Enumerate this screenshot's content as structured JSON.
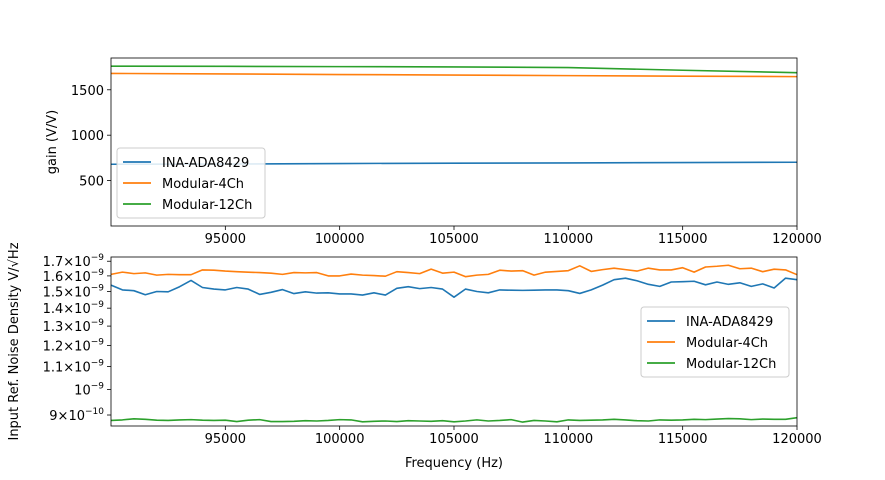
{
  "chart_data": [
    {
      "type": "line",
      "title": "",
      "xlabel": "",
      "ylabel": "gain (V/V)",
      "xlim": [
        90000,
        120000
      ],
      "ylim": [
        0,
        1850
      ],
      "xticks": [
        95000,
        100000,
        105000,
        110000,
        115000,
        120000
      ],
      "xtick_labels": [
        "95000",
        "100000",
        "105000",
        "110000",
        "115000",
        "120000"
      ],
      "yticks": [
        500,
        1000,
        1500
      ],
      "ytick_labels": [
        "500",
        "1000",
        "1500"
      ],
      "legend": "lower-left",
      "x": [
        90000,
        95000,
        100000,
        105000,
        110000,
        115000,
        120000
      ],
      "series": [
        {
          "name": "INA-ADA8429",
          "color": "#1f77b4",
          "values": [
            680,
            682,
            688,
            692,
            695,
            698,
            702
          ]
        },
        {
          "name": "Modular-4Ch",
          "color": "#ff7f0e",
          "values": [
            1680,
            1675,
            1668,
            1662,
            1656,
            1650,
            1645
          ]
        },
        {
          "name": "Modular-12Ch",
          "color": "#2ca02c",
          "values": [
            1760,
            1758,
            1755,
            1752,
            1745,
            1715,
            1688
          ]
        }
      ]
    },
    {
      "type": "line",
      "title": "",
      "xlabel": "Frequency (Hz)",
      "ylabel": "Input Ref. Noise Density V/√Hz",
      "yscale": "log",
      "xlim": [
        90000,
        120000
      ],
      "ylim": [
        8.6e-10,
        1.73e-09
      ],
      "xticks": [
        95000,
        100000,
        105000,
        110000,
        115000,
        120000
      ],
      "xtick_labels": [
        "95000",
        "100000",
        "105000",
        "110000",
        "115000",
        "120000"
      ],
      "yticks": [
        9e-10,
        1e-09,
        1.1e-09,
        1.2e-09,
        1.3e-09,
        1.4e-09,
        1.5e-09,
        1.6e-09,
        1.7e-09
      ],
      "ytick_mantissa": [
        "9",
        "",
        "1.1",
        "1.2",
        "1.3",
        "1.4",
        "1.5",
        "1.6",
        "1.7"
      ],
      "ytick_exponent": [
        "−10",
        "−9",
        "−9",
        "−9",
        "−9",
        "−9",
        "−9",
        "−9",
        "−9"
      ],
      "legend": "center-right",
      "x": [
        90000,
        90500,
        91000,
        91500,
        92000,
        92500,
        93000,
        93500,
        94000,
        94500,
        95000,
        95500,
        96000,
        96500,
        97000,
        97500,
        98000,
        98500,
        99000,
        99500,
        100000,
        100500,
        101000,
        101500,
        102000,
        102500,
        103000,
        103500,
        104000,
        104500,
        105000,
        105500,
        106000,
        106500,
        107000,
        107500,
        108000,
        108500,
        109000,
        109500,
        110000,
        110500,
        111000,
        111500,
        112000,
        112500,
        113000,
        113500,
        114000,
        114500,
        115000,
        115500,
        116000,
        116500,
        117000,
        117500,
        118000,
        118500,
        119000,
        119500,
        120000
      ],
      "series": [
        {
          "name": "INA-ADA8429",
          "color": "#1f77b4",
          "values": [
            1.54e-09,
            1.51e-09,
            1.505e-09,
            1.48e-09,
            1.5e-09,
            1.498e-09,
            1.53e-09,
            1.57e-09,
            1.525e-09,
            1.515e-09,
            1.51e-09,
            1.525e-09,
            1.515e-09,
            1.482e-09,
            1.495e-09,
            1.512e-09,
            1.487e-09,
            1.498e-09,
            1.49e-09,
            1.492e-09,
            1.485e-09,
            1.485e-09,
            1.478e-09,
            1.492e-09,
            1.478e-09,
            1.52e-09,
            1.53e-09,
            1.518e-09,
            1.525e-09,
            1.515e-09,
            1.465e-09,
            1.515e-09,
            1.5e-09,
            1.492e-09,
            1.51e-09,
            1.508e-09,
            1.507e-09,
            1.508e-09,
            1.51e-09,
            1.51e-09,
            1.505e-09,
            1.488e-09,
            1.51e-09,
            1.54e-09,
            1.575e-09,
            1.585e-09,
            1.568e-09,
            1.545e-09,
            1.532e-09,
            1.56e-09,
            1.562e-09,
            1.565e-09,
            1.542e-09,
            1.56e-09,
            1.545e-09,
            1.555e-09,
            1.532e-09,
            1.548e-09,
            1.522e-09,
            1.585e-09,
            1.575e-09
          ]
        },
        {
          "name": "Modular-4Ch",
          "color": "#ff7f0e",
          "values": [
            1.61e-09,
            1.625e-09,
            1.615e-09,
            1.62e-09,
            1.605e-09,
            1.61e-09,
            1.608e-09,
            1.608e-09,
            1.64e-09,
            1.638e-09,
            1.632e-09,
            1.628e-09,
            1.625e-09,
            1.622e-09,
            1.618e-09,
            1.61e-09,
            1.622e-09,
            1.62e-09,
            1.622e-09,
            1.6e-09,
            1.6e-09,
            1.612e-09,
            1.605e-09,
            1.602e-09,
            1.598e-09,
            1.628e-09,
            1.622e-09,
            1.615e-09,
            1.645e-09,
            1.618e-09,
            1.625e-09,
            1.595e-09,
            1.605e-09,
            1.61e-09,
            1.638e-09,
            1.632e-09,
            1.635e-09,
            1.605e-09,
            1.625e-09,
            1.63e-09,
            1.635e-09,
            1.668e-09,
            1.63e-09,
            1.642e-09,
            1.652e-09,
            1.642e-09,
            1.632e-09,
            1.652e-09,
            1.64e-09,
            1.64e-09,
            1.655e-09,
            1.625e-09,
            1.66e-09,
            1.665e-09,
            1.672e-09,
            1.648e-09,
            1.652e-09,
            1.628e-09,
            1.645e-09,
            1.64e-09,
            1.608e-09
          ]
        },
        {
          "name": "Modular-12Ch",
          "color": "#2ca02c",
          "values": [
            8.8e-10,
            8.82e-10,
            8.86e-10,
            8.84e-10,
            8.81e-10,
            8.8e-10,
            8.82e-10,
            8.83e-10,
            8.81e-10,
            8.8e-10,
            8.81e-10,
            8.76e-10,
            8.81e-10,
            8.83e-10,
            8.76e-10,
            8.76e-10,
            8.77e-10,
            8.79e-10,
            8.78e-10,
            8.8e-10,
            8.83e-10,
            8.82e-10,
            8.75e-10,
            8.77e-10,
            8.78e-10,
            8.76e-10,
            8.79e-10,
            8.78e-10,
            8.77e-10,
            8.79e-10,
            8.75e-10,
            8.78e-10,
            8.82e-10,
            8.78e-10,
            8.8e-10,
            8.83e-10,
            8.74e-10,
            8.8e-10,
            8.78e-10,
            8.75e-10,
            8.82e-10,
            8.8e-10,
            8.81e-10,
            8.82e-10,
            8.84e-10,
            8.82e-10,
            8.79e-10,
            8.78e-10,
            8.82e-10,
            8.81e-10,
            8.82e-10,
            8.84e-10,
            8.83e-10,
            8.85e-10,
            8.87e-10,
            8.86e-10,
            8.83e-10,
            8.85e-10,
            8.84e-10,
            8.84e-10,
            8.9e-10
          ]
        }
      ]
    }
  ]
}
